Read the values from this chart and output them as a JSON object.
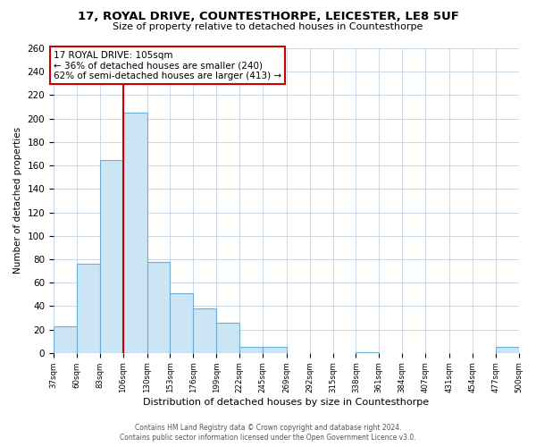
{
  "title": "17, ROYAL DRIVE, COUNTESTHORPE, LEICESTER, LE8 5UF",
  "subtitle": "Size of property relative to detached houses in Countesthorpe",
  "xlabel": "Distribution of detached houses by size in Countesthorpe",
  "ylabel": "Number of detached properties",
  "bin_labels": [
    "37sqm",
    "60sqm",
    "83sqm",
    "106sqm",
    "130sqm",
    "153sqm",
    "176sqm",
    "199sqm",
    "222sqm",
    "245sqm",
    "269sqm",
    "292sqm",
    "315sqm",
    "338sqm",
    "361sqm",
    "384sqm",
    "407sqm",
    "431sqm",
    "454sqm",
    "477sqm",
    "500sqm"
  ],
  "bar_heights": [
    23,
    76,
    165,
    205,
    78,
    51,
    38,
    26,
    5,
    5,
    0,
    0,
    0,
    1,
    0,
    0,
    0,
    0,
    0,
    5,
    0
  ],
  "bar_color": "#cce5f5",
  "bar_edge_color": "#6baed6",
  "vline_x": 106,
  "vline_color": "#cc0000",
  "annotation_title": "17 ROYAL DRIVE: 105sqm",
  "annotation_line1": "← 36% of detached houses are smaller (240)",
  "annotation_line2": "62% of semi-detached houses are larger (413) →",
  "annotation_box_color": "#ffffff",
  "annotation_box_edge": "#cc0000",
  "ylim": [
    0,
    260
  ],
  "yticks": [
    0,
    20,
    40,
    60,
    80,
    100,
    120,
    140,
    160,
    180,
    200,
    220,
    240,
    260
  ],
  "bin_edges": [
    37,
    60,
    83,
    106,
    130,
    153,
    176,
    199,
    222,
    245,
    269,
    292,
    315,
    338,
    361,
    384,
    407,
    431,
    454,
    477,
    500
  ],
  "footer_line1": "Contains HM Land Registry data © Crown copyright and database right 2024.",
  "footer_line2": "Contains public sector information licensed under the Open Government Licence v3.0.",
  "bg_color": "#ffffff",
  "grid_color": "#c8d8e8"
}
